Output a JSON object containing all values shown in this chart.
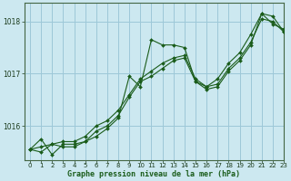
{
  "title": "Graphe pression niveau de la mer (hPa)",
  "background_color": "#cce8f0",
  "grid_color": "#9dc8d8",
  "line_color": "#1a5c1a",
  "marker_color": "#1a5c1a",
  "xlim": [
    -0.5,
    23
  ],
  "ylim": [
    1015.35,
    1018.35
  ],
  "yticks": [
    1016,
    1017,
    1018
  ],
  "xticks": [
    0,
    1,
    2,
    3,
    4,
    5,
    6,
    7,
    8,
    9,
    10,
    11,
    12,
    13,
    14,
    15,
    16,
    17,
    18,
    19,
    20,
    21,
    22,
    23
  ],
  "series": [
    [
      1015.55,
      1015.75,
      1015.45,
      1015.65,
      1015.65,
      1015.7,
      1015.8,
      1015.95,
      1016.15,
      1016.95,
      1016.75,
      1017.65,
      1017.55,
      1017.55,
      1017.5,
      1016.85,
      1016.75,
      1016.9,
      1017.2,
      1017.4,
      1017.75,
      1018.15,
      1017.95,
      1017.85
    ],
    [
      1015.55,
      1015.5,
      1015.65,
      1015.6,
      1015.6,
      1015.7,
      1015.9,
      1016.0,
      1016.2,
      1016.55,
      1016.85,
      1016.95,
      1017.1,
      1017.25,
      1017.3,
      1016.85,
      1016.7,
      1016.75,
      1017.05,
      1017.25,
      1017.55,
      1018.15,
      1018.1,
      1017.8
    ],
    [
      1015.55,
      1015.6,
      1015.65,
      1015.7,
      1015.7,
      1015.8,
      1016.0,
      1016.1,
      1016.3,
      1016.6,
      1016.9,
      1017.05,
      1017.2,
      1017.3,
      1017.35,
      1016.9,
      1016.75,
      1016.8,
      1017.1,
      1017.3,
      1017.6,
      1018.05,
      1018.0,
      1017.8
    ]
  ]
}
